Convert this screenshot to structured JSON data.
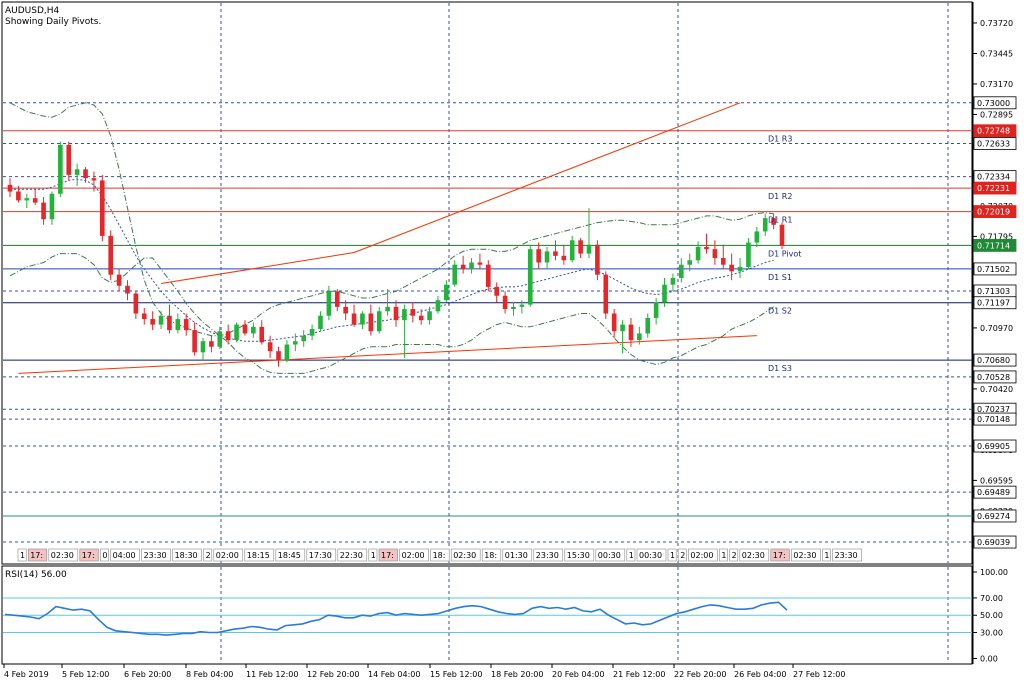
{
  "chart_data": [
    {
      "type": "candlestick",
      "title": "AUDUSD,H4",
      "subtitle": "Showing Daily Pivots.",
      "ylim": [
        0.6885,
        0.739
      ],
      "yticks": [
        "0.73720",
        "0.73445",
        "0.73170",
        "0.72895",
        "0.72620",
        "0.72345",
        "0.72070",
        "0.71795",
        "0.71520",
        "0.71245",
        "0.70970",
        "0.70695",
        "0.70420",
        "0.70145",
        "0.69870",
        "0.69595",
        "0.69320"
      ],
      "price_levels": [
        {
          "label": "0.73000",
          "value": 0.73,
          "style": "dashed-blue"
        },
        {
          "label": "0.72748",
          "value": 0.72748,
          "style": "solid-red",
          "tag": "red"
        },
        {
          "label": "0.72633",
          "value": 0.72633,
          "style": "dashed-blue"
        },
        {
          "label": "0.72334",
          "value": 0.72334,
          "style": "dashed-blue"
        },
        {
          "label": "0.72231",
          "value": 0.72231,
          "style": "solid-red",
          "tag": "red"
        },
        {
          "label": "0.72019",
          "value": 0.72019,
          "style": "solid-red",
          "tag": "red"
        },
        {
          "label": "0.71714",
          "value": 0.71714,
          "style": "solid-green",
          "tag": "green"
        },
        {
          "label": "0.71502",
          "value": 0.71502,
          "style": "solid-blue"
        },
        {
          "label": "0.71303",
          "value": 0.71303,
          "style": "dashed-blue"
        },
        {
          "label": "0.71197",
          "value": 0.71197,
          "style": "solid-navy"
        },
        {
          "label": "0.70680",
          "value": 0.7068,
          "style": "solid-navy"
        },
        {
          "label": "0.70528",
          "value": 0.70528,
          "style": "dashed-blue"
        },
        {
          "label": "0.70237",
          "value": 0.70237,
          "style": "dashed-blue"
        },
        {
          "label": "0.70148",
          "value": 0.70148,
          "style": "dashed-blue"
        },
        {
          "label": "0.69905",
          "value": 0.69905,
          "style": "dashed-blue"
        },
        {
          "label": "0.69489",
          "value": 0.69489,
          "style": "dashed-blue"
        },
        {
          "label": "0.69274",
          "value": 0.69274,
          "style": "solid-teal"
        },
        {
          "label": "0.69039",
          "value": 0.69039,
          "style": "dashed-blue"
        }
      ],
      "pivot_labels": [
        {
          "text": "D1 R3",
          "value": 0.72748
        },
        {
          "text": "D1 R2",
          "value": 0.72231
        },
        {
          "text": "D1 R1",
          "value": 0.72019
        },
        {
          "text": "D1 Pivot",
          "value": 0.71714
        },
        {
          "text": "D1 S1",
          "value": 0.71502
        },
        {
          "text": "D1 S2",
          "value": 0.71197
        },
        {
          "text": "D1 S3",
          "value": 0.7068
        }
      ],
      "session_labels": [
        "1",
        "17:",
        "02:30",
        "17:",
        "0",
        "04:00",
        "23:30",
        "18:30",
        "2",
        "02:00",
        "18:15",
        "18:45",
        "17:30",
        "22:30",
        "1",
        "17:",
        "02:00",
        "18:",
        "02:30",
        "18:",
        "01:30",
        "23:30",
        "15:30",
        "00:30",
        "1",
        "00:30",
        "1",
        "2",
        "02:00",
        "1",
        "2",
        "02:30",
        "17:",
        "02:30",
        "1",
        "23:30"
      ],
      "x_labels": [
        "4 Feb 2019",
        "5 Feb 12:00",
        "6 Feb 20:00",
        "8 Feb 04:00",
        "11 Feb 12:00",
        "12 Feb 20:00",
        "14 Feb 04:00",
        "15 Feb 12:00",
        "18 Feb 20:00",
        "20 Feb 04:00",
        "21 Feb 12:00",
        "22 Feb 20:00",
        "26 Feb 04:00",
        "27 Feb 12:00"
      ],
      "candles": [
        [
          0.7226,
          0.7232,
          0.7215,
          0.722
        ],
        [
          0.722,
          0.7225,
          0.721,
          0.7212
        ],
        [
          0.7212,
          0.7218,
          0.7205,
          0.7214
        ],
        [
          0.7214,
          0.7222,
          0.7208,
          0.721
        ],
        [
          0.721,
          0.7215,
          0.719,
          0.7195
        ],
        [
          0.7195,
          0.722,
          0.719,
          0.7218
        ],
        [
          0.7218,
          0.7265,
          0.7215,
          0.7262
        ],
        [
          0.7262,
          0.7265,
          0.723,
          0.7235
        ],
        [
          0.7235,
          0.7245,
          0.7225,
          0.724
        ],
        [
          0.724,
          0.7242,
          0.7228,
          0.7232
        ],
        [
          0.7232,
          0.7238,
          0.722,
          0.723
        ],
        [
          0.723,
          0.7235,
          0.7175,
          0.718
        ],
        [
          0.718,
          0.7185,
          0.714,
          0.7145
        ],
        [
          0.7145,
          0.715,
          0.713,
          0.7135
        ],
        [
          0.7135,
          0.714,
          0.7122,
          0.7128
        ],
        [
          0.7128,
          0.713,
          0.7105,
          0.711
        ],
        [
          0.711,
          0.7115,
          0.71,
          0.7105
        ],
        [
          0.7105,
          0.7112,
          0.7095,
          0.71
        ],
        [
          0.71,
          0.7112,
          0.7096,
          0.7108
        ],
        [
          0.7108,
          0.7118,
          0.7092,
          0.7095
        ],
        [
          0.7095,
          0.711,
          0.7092,
          0.7105
        ],
        [
          0.7105,
          0.711,
          0.709,
          0.7095
        ],
        [
          0.7095,
          0.7102,
          0.7072,
          0.7075
        ],
        [
          0.7075,
          0.7088,
          0.7068,
          0.7085
        ],
        [
          0.7085,
          0.709,
          0.7075,
          0.708
        ],
        [
          0.708,
          0.7098,
          0.7078,
          0.7094
        ],
        [
          0.7094,
          0.71,
          0.7082,
          0.7086
        ],
        [
          0.7086,
          0.7102,
          0.7084,
          0.71
        ],
        [
          0.71,
          0.7104,
          0.709,
          0.7092
        ],
        [
          0.7092,
          0.7102,
          0.7088,
          0.7098
        ],
        [
          0.7098,
          0.7104,
          0.7082,
          0.7084
        ],
        [
          0.7084,
          0.709,
          0.707,
          0.7076
        ],
        [
          0.7076,
          0.708,
          0.7062,
          0.7068
        ],
        [
          0.7068,
          0.7086,
          0.7066,
          0.7082
        ],
        [
          0.7082,
          0.7092,
          0.7076,
          0.7085
        ],
        [
          0.7085,
          0.7095,
          0.708,
          0.709
        ],
        [
          0.709,
          0.71,
          0.7086,
          0.7096
        ],
        [
          0.7096,
          0.7112,
          0.7094,
          0.7108
        ],
        [
          0.7108,
          0.7135,
          0.7104,
          0.713
        ],
        [
          0.713,
          0.7132,
          0.7112,
          0.7116
        ],
        [
          0.7116,
          0.7122,
          0.7104,
          0.711
        ],
        [
          0.711,
          0.7118,
          0.7098,
          0.71
        ],
        [
          0.71,
          0.7112,
          0.7096,
          0.711
        ],
        [
          0.711,
          0.7118,
          0.709,
          0.7094
        ],
        [
          0.7094,
          0.7116,
          0.7092,
          0.7112
        ],
        [
          0.7112,
          0.7132,
          0.7108,
          0.7116
        ],
        [
          0.7116,
          0.7122,
          0.7098,
          0.7104
        ],
        [
          0.7104,
          0.7118,
          0.707,
          0.7114
        ],
        [
          0.7114,
          0.712,
          0.7102,
          0.7108
        ],
        [
          0.7108,
          0.7114,
          0.71,
          0.7104
        ],
        [
          0.7104,
          0.7116,
          0.71,
          0.7112
        ],
        [
          0.7112,
          0.7126,
          0.711,
          0.7122
        ],
        [
          0.7122,
          0.714,
          0.712,
          0.7136
        ],
        [
          0.7136,
          0.7158,
          0.7134,
          0.7154
        ],
        [
          0.7154,
          0.7162,
          0.7146,
          0.715
        ],
        [
          0.715,
          0.716,
          0.7146,
          0.7156
        ],
        [
          0.7156,
          0.7164,
          0.715,
          0.7154
        ],
        [
          0.7154,
          0.7158,
          0.713,
          0.7134
        ],
        [
          0.7134,
          0.7138,
          0.712,
          0.7126
        ],
        [
          0.7126,
          0.713,
          0.711,
          0.7114
        ],
        [
          0.7114,
          0.712,
          0.7108,
          0.7116
        ],
        [
          0.7116,
          0.7122,
          0.711,
          0.7118
        ],
        [
          0.7118,
          0.7172,
          0.7116,
          0.7168
        ],
        [
          0.7168,
          0.7174,
          0.715,
          0.7156
        ],
        [
          0.7156,
          0.717,
          0.715,
          0.7166
        ],
        [
          0.7166,
          0.7176,
          0.7158,
          0.7162
        ],
        [
          0.7162,
          0.7172,
          0.7154,
          0.7158
        ],
        [
          0.7158,
          0.718,
          0.7156,
          0.7176
        ],
        [
          0.7176,
          0.7178,
          0.716,
          0.7164
        ],
        [
          0.7164,
          0.7205,
          0.716,
          0.7172
        ],
        [
          0.7172,
          0.7176,
          0.714,
          0.7145
        ],
        [
          0.7145,
          0.7148,
          0.7105,
          0.711
        ],
        [
          0.711,
          0.7114,
          0.7088,
          0.7094
        ],
        [
          0.7094,
          0.7104,
          0.7074,
          0.71
        ],
        [
          0.71,
          0.7106,
          0.708,
          0.7086
        ],
        [
          0.7086,
          0.7098,
          0.7082,
          0.7092
        ],
        [
          0.7092,
          0.711,
          0.7088,
          0.7106
        ],
        [
          0.7106,
          0.7124,
          0.71,
          0.712
        ],
        [
          0.712,
          0.7142,
          0.7116,
          0.7136
        ],
        [
          0.7136,
          0.7146,
          0.713,
          0.7142
        ],
        [
          0.7142,
          0.716,
          0.7138,
          0.7154
        ],
        [
          0.7154,
          0.7164,
          0.7148,
          0.7158
        ],
        [
          0.7158,
          0.7175,
          0.7155,
          0.717
        ],
        [
          0.717,
          0.7182,
          0.7164,
          0.7168
        ],
        [
          0.7168,
          0.7176,
          0.7154,
          0.716
        ],
        [
          0.716,
          0.7172,
          0.715,
          0.7154
        ],
        [
          0.7154,
          0.7164,
          0.714,
          0.7148
        ],
        [
          0.7148,
          0.716,
          0.7142,
          0.7152
        ],
        [
          0.7152,
          0.7178,
          0.715,
          0.7174
        ],
        [
          0.7174,
          0.7188,
          0.717,
          0.7184
        ],
        [
          0.7184,
          0.72,
          0.718,
          0.7196
        ],
        [
          0.7196,
          0.72,
          0.7186,
          0.719
        ],
        [
          0.719,
          0.7192,
          0.7168,
          0.7171
        ]
      ],
      "bollinger_upper": [
        0.73,
        0.7296,
        0.7292,
        0.729,
        0.7288,
        0.7287,
        0.729,
        0.7296,
        0.7298,
        0.73,
        0.7298,
        0.729,
        0.727,
        0.724,
        0.7205,
        0.717,
        0.714,
        0.712,
        0.711,
        0.7104,
        0.71,
        0.7097,
        0.7094,
        0.7092,
        0.709,
        0.709,
        0.7092,
        0.7096,
        0.71,
        0.7104,
        0.711,
        0.7115,
        0.7118,
        0.712,
        0.7122,
        0.7124,
        0.7126,
        0.7128,
        0.713,
        0.713,
        0.7128,
        0.7126,
        0.7124,
        0.7124,
        0.7126,
        0.7128,
        0.713,
        0.7134,
        0.7138,
        0.7142,
        0.7146,
        0.715,
        0.7156,
        0.7162,
        0.7166,
        0.7168,
        0.7168,
        0.7168,
        0.7166,
        0.7166,
        0.7168,
        0.7172,
        0.7176,
        0.7178,
        0.718,
        0.7182,
        0.7184,
        0.7186,
        0.7188,
        0.719,
        0.7192,
        0.7193,
        0.7194,
        0.7194,
        0.7193,
        0.7192,
        0.719,
        0.719,
        0.719,
        0.719,
        0.7192,
        0.7194,
        0.7196,
        0.7198,
        0.7198,
        0.7196,
        0.7194,
        0.7195,
        0.7198,
        0.72,
        0.7201,
        0.72
      ],
      "bollinger_middle": [
        0.7222,
        0.7222,
        0.7222,
        0.7222,
        0.7222,
        0.7224,
        0.7227,
        0.723,
        0.7231,
        0.723,
        0.7226,
        0.7216,
        0.7204,
        0.719,
        0.7176,
        0.7162,
        0.715,
        0.714,
        0.713,
        0.7122,
        0.7115,
        0.7108,
        0.7102,
        0.7097,
        0.7093,
        0.709,
        0.7088,
        0.7086,
        0.7085,
        0.7085,
        0.7085,
        0.7086,
        0.7087,
        0.7088,
        0.7089,
        0.709,
        0.7092,
        0.7094,
        0.7096,
        0.7098,
        0.7099,
        0.71,
        0.7101,
        0.7102,
        0.7103,
        0.7104,
        0.7106,
        0.7108,
        0.711,
        0.7112,
        0.7114,
        0.7116,
        0.7118,
        0.7121,
        0.7124,
        0.7127,
        0.713,
        0.7132,
        0.7133,
        0.7134,
        0.7134,
        0.7135,
        0.7137,
        0.7139,
        0.7141,
        0.7143,
        0.7145,
        0.7147,
        0.7149,
        0.715,
        0.7148,
        0.7145,
        0.7141,
        0.7137,
        0.7133,
        0.713,
        0.7128,
        0.7127,
        0.7128,
        0.713,
        0.7132,
        0.7135,
        0.7138,
        0.714,
        0.7142,
        0.7143,
        0.7145,
        0.7147,
        0.715,
        0.7153,
        0.7156,
        0.7158
      ],
      "bollinger_lower": [
        0.7144,
        0.7148,
        0.7152,
        0.7154,
        0.7156,
        0.7161,
        0.7164,
        0.7164,
        0.7164,
        0.716,
        0.7154,
        0.7142,
        0.7138,
        0.714,
        0.7147,
        0.7154,
        0.716,
        0.716,
        0.715,
        0.714,
        0.713,
        0.7119,
        0.711,
        0.7102,
        0.7096,
        0.709,
        0.7084,
        0.7076,
        0.707,
        0.7066,
        0.706,
        0.7057,
        0.7056,
        0.7056,
        0.7056,
        0.7056,
        0.7058,
        0.706,
        0.7062,
        0.7066,
        0.707,
        0.7074,
        0.7078,
        0.708,
        0.708,
        0.708,
        0.7082,
        0.7082,
        0.7082,
        0.7082,
        0.7082,
        0.7082,
        0.708,
        0.708,
        0.7082,
        0.7086,
        0.7092,
        0.7096,
        0.71,
        0.7102,
        0.71,
        0.7098,
        0.7098,
        0.71,
        0.7102,
        0.7104,
        0.7106,
        0.7108,
        0.711,
        0.711,
        0.7104,
        0.7097,
        0.7088,
        0.708,
        0.7073,
        0.7068,
        0.7066,
        0.7064,
        0.7066,
        0.707,
        0.7072,
        0.7076,
        0.708,
        0.7082,
        0.7086,
        0.709,
        0.7096,
        0.7099,
        0.7102,
        0.7106,
        0.7111,
        0.7116
      ],
      "trendlines": [
        {
          "color": "#ff3300",
          "points": [
            [
              1,
              0.7056
            ],
            [
              89,
              0.709
            ]
          ]
        },
        {
          "color": "#ff3300",
          "points": [
            [
              18,
              0.7137
            ],
            [
              41,
              0.7165
            ]
          ]
        },
        {
          "color": "#ff3300",
          "points": [
            [
              41,
              0.7165
            ],
            [
              87,
              0.73
            ]
          ]
        }
      ]
    },
    {
      "type": "line",
      "title": "RSI(14) 56.00",
      "ylim": [
        0,
        100
      ],
      "yticks": [
        "100.00",
        "70.00",
        "50.00",
        "30.00",
        "0.00"
      ],
      "levels": [
        70,
        50,
        30
      ],
      "series": [
        {
          "values": [
            51,
            50,
            49,
            48,
            46,
            52,
            60,
            58,
            56,
            57,
            55,
            45,
            36,
            32,
            31,
            30,
            29,
            28,
            28,
            27,
            28,
            29,
            29,
            31,
            30,
            30,
            32,
            34,
            35,
            37,
            36,
            34,
            33,
            38,
            39,
            40,
            43,
            45,
            50,
            49,
            47,
            47,
            50,
            49,
            52,
            53,
            50,
            52,
            51,
            50,
            51,
            52,
            55,
            58,
            60,
            61,
            60,
            57,
            54,
            52,
            51,
            52,
            58,
            60,
            58,
            59,
            57,
            59,
            55,
            54,
            57,
            50,
            45,
            40,
            41,
            39,
            40,
            44,
            48,
            52,
            54,
            57,
            60,
            62,
            61,
            59,
            57,
            57,
            58,
            62,
            64,
            65,
            56
          ]
        }
      ]
    }
  ]
}
